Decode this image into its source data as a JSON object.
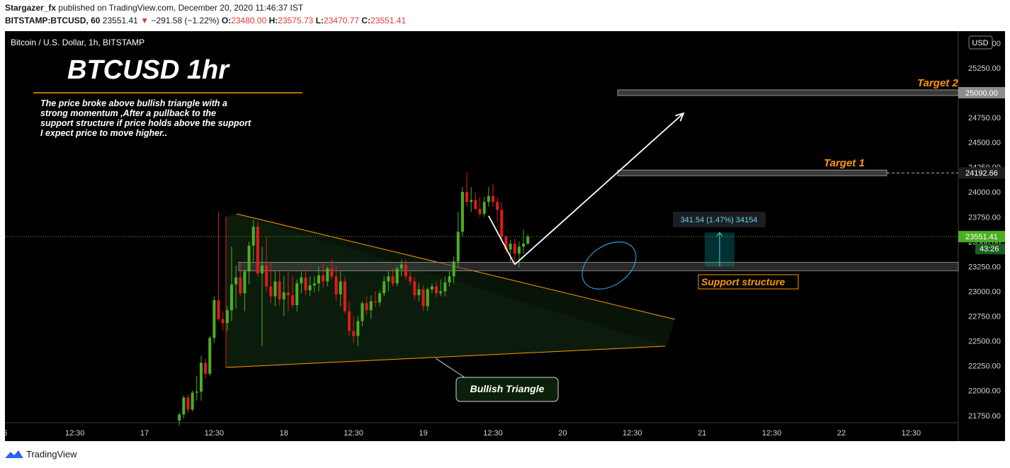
{
  "header": {
    "publisher": "Stargazer_fx",
    "published_text": "published on TradingView.com, December 20, 2020 11:46:37 IST",
    "symbol": "BITSTAMP:BTCUSD, 60",
    "last": "23551.41",
    "change": "−291.58 (−1.22%)",
    "o_label": "O:",
    "o_value": "23480.00",
    "h_label": "H:",
    "h_value": "23575.73",
    "l_label": "L:",
    "l_value": "23470.77",
    "c_label": "C:",
    "c_value": "23551.41"
  },
  "footer": {
    "brand": "TradingView"
  },
  "colors": {
    "up": "#4caf22",
    "down": "#e01b1b",
    "accent": "#ff9800",
    "background": "#000000",
    "ray": "#5ec4d8"
  },
  "chart_data": {
    "type": "candlestick",
    "symbol_label": "Bitcoin / U.S. Dollar, 1h, BITSTAMP",
    "title": "BTCUSD 1hr",
    "description": [
      "The price broke above bullish triangle with a",
      "strong momentum ,After a pullback to the",
      "support structure if price holds above the support",
      "I expect price to move higher.."
    ],
    "currency": "USD",
    "ylim": [
      21720,
      25570
    ],
    "y_ticks": [
      21750,
      22000,
      22250,
      22500,
      22750,
      23000,
      23250,
      23500,
      23750,
      24000,
      24250,
      24500,
      24750,
      25000,
      25250,
      25500
    ],
    "x_ticks": [
      "6",
      "12:30",
      "17",
      "12:30",
      "18",
      "12:30",
      "19",
      "12:30",
      "20",
      "12:30",
      "21",
      "12:30",
      "22",
      "12:30"
    ],
    "x_tick_index": [
      -32,
      -16,
      0,
      16,
      32,
      48,
      64,
      80,
      96,
      112,
      128,
      144,
      160,
      176
    ],
    "candles": [
      [
        21700,
        21780,
        21650,
        21760
      ],
      [
        21760,
        21950,
        21720,
        21930
      ],
      [
        21930,
        21960,
        21780,
        21810
      ],
      [
        21810,
        22000,
        21790,
        21980
      ],
      [
        21980,
        22150,
        21900,
        21990
      ],
      [
        21990,
        22350,
        21900,
        22280
      ],
      [
        22280,
        22320,
        22120,
        22170
      ],
      [
        22170,
        22550,
        22150,
        22530
      ],
      [
        22530,
        22950,
        22480,
        22910
      ],
      [
        22910,
        23800,
        22700,
        22720
      ],
      [
        22720,
        22800,
        22600,
        22680
      ],
      [
        22680,
        22850,
        22600,
        22810
      ],
      [
        22810,
        23450,
        22700,
        23070
      ],
      [
        23070,
        23260,
        22830,
        23140
      ],
      [
        23140,
        23280,
        22950,
        22980
      ],
      [
        22980,
        23220,
        22800,
        23200
      ],
      [
        23200,
        23500,
        23070,
        23460
      ],
      [
        23460,
        23720,
        23300,
        23650
      ],
      [
        23650,
        23700,
        23150,
        23180
      ],
      [
        23180,
        23450,
        22450,
        23260
      ],
      [
        23260,
        23550,
        23000,
        23050
      ],
      [
        23050,
        23300,
        22880,
        22950
      ],
      [
        22950,
        23200,
        22850,
        23100
      ],
      [
        23100,
        23200,
        22860,
        22920
      ],
      [
        22920,
        23150,
        22750,
        22990
      ],
      [
        22990,
        23200,
        22800,
        22960
      ],
      [
        22960,
        23150,
        22830,
        22860
      ],
      [
        22860,
        23120,
        22800,
        23080
      ],
      [
        23080,
        23200,
        22980,
        23140
      ],
      [
        23140,
        23220,
        22960,
        23010
      ],
      [
        23010,
        23150,
        22950,
        23060
      ],
      [
        23060,
        23150,
        22990,
        23080
      ],
      [
        23080,
        23250,
        23000,
        23160
      ],
      [
        23160,
        23280,
        23040,
        23100
      ],
      [
        23100,
        23250,
        23050,
        23230
      ],
      [
        23230,
        23320,
        23120,
        23150
      ],
      [
        23150,
        23250,
        22900,
        22970
      ],
      [
        22970,
        23200,
        22850,
        23100
      ],
      [
        23100,
        23150,
        22780,
        22800
      ],
      [
        22800,
        22900,
        22550,
        22600
      ],
      [
        22600,
        22750,
        22480,
        22550
      ],
      [
        22550,
        22750,
        22450,
        22700
      ],
      [
        22700,
        22900,
        22650,
        22880
      ],
      [
        22880,
        22950,
        22760,
        22810
      ],
      [
        22810,
        22960,
        22720,
        22900
      ],
      [
        22900,
        23000,
        22840,
        22890
      ],
      [
        22890,
        23010,
        22850,
        22980
      ],
      [
        22980,
        23150,
        22950,
        23100
      ],
      [
        23100,
        23200,
        23000,
        23150
      ],
      [
        23150,
        23230,
        23050,
        23080
      ],
      [
        23080,
        23250,
        23050,
        23230
      ],
      [
        23230,
        23320,
        23150,
        23270
      ],
      [
        23270,
        23320,
        23120,
        23150
      ],
      [
        23150,
        23200,
        23060,
        23100
      ],
      [
        23100,
        23140,
        22920,
        22960
      ],
      [
        22960,
        23080,
        22900,
        23020
      ],
      [
        23020,
        23060,
        22800,
        22850
      ],
      [
        22850,
        23040,
        22800,
        23020
      ],
      [
        23020,
        23080,
        22980,
        23050
      ],
      [
        23050,
        23100,
        22940,
        22980
      ],
      [
        22980,
        23120,
        22950,
        23000
      ],
      [
        23000,
        23150,
        22950,
        23090
      ],
      [
        23090,
        23200,
        23050,
        23150
      ],
      [
        23150,
        23350,
        23080,
        23300
      ],
      [
        23300,
        23800,
        23250,
        23600
      ],
      [
        23600,
        24050,
        23550,
        24000
      ],
      [
        24000,
        24200,
        23850,
        23900
      ],
      [
        23900,
        24050,
        23800,
        23920
      ],
      [
        23920,
        24000,
        23820,
        23830
      ],
      [
        23830,
        23950,
        23750,
        23780
      ],
      [
        23780,
        23950,
        23750,
        23900
      ],
      [
        23900,
        24050,
        23850,
        23960
      ],
      [
        23960,
        24080,
        23850,
        23900
      ],
      [
        23900,
        23950,
        23700,
        23820
      ],
      [
        23820,
        23900,
        23500,
        23550
      ],
      [
        23550,
        23560,
        23380,
        23420
      ],
      [
        23420,
        23520,
        23300,
        23480
      ],
      [
        23480,
        23530,
        23290,
        23380
      ],
      [
        23380,
        23500,
        23240,
        23450
      ],
      [
        23450,
        23620,
        23380,
        23480
      ],
      [
        23480,
        23576,
        23470,
        23551
      ]
    ],
    "annotations": {
      "target_1": {
        "label": "Target 1",
        "price": 24192.66,
        "price_label": "24192.66"
      },
      "target_2": {
        "label": "Target 2",
        "price": 25000.0,
        "price_label": "25000.00"
      },
      "support": {
        "label": "Support structure",
        "price": 23250
      },
      "current_price": {
        "price": 23551.41,
        "price_label": "23551.41",
        "countdown": "43:26"
      },
      "measure": {
        "label": "341.54 (1.47%) 34154",
        "from": 23250,
        "to": 23592
      },
      "pattern": {
        "label": "Bullish Triangle"
      }
    }
  }
}
